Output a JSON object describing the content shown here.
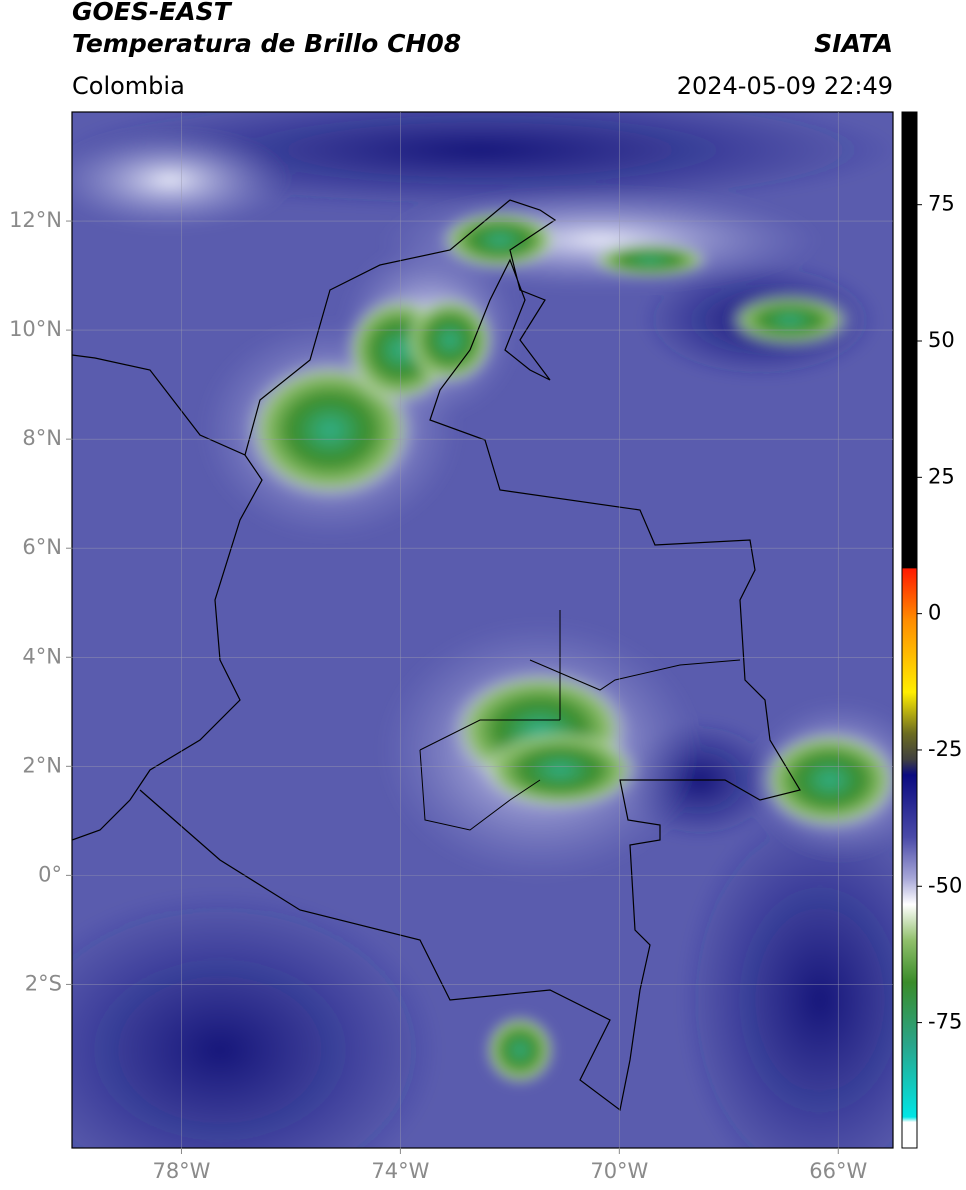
{
  "header": {
    "title": "GOES-EAST",
    "subtitle": "Temperatura de Brillo CH08",
    "source": "SIATA",
    "region": "Colombia",
    "datetime": "2024-05-09 22:49"
  },
  "map": {
    "xlim": [
      -80,
      -65
    ],
    "ylim": [
      -5,
      14
    ],
    "xticks": [
      {
        "value": -78,
        "label": "78°W"
      },
      {
        "value": -74,
        "label": "74°W"
      },
      {
        "value": -70,
        "label": "70°W"
      },
      {
        "value": -66,
        "label": "66°W"
      }
    ],
    "yticks": [
      {
        "value": 12,
        "label": "12°N"
      },
      {
        "value": 10,
        "label": "10°N"
      },
      {
        "value": 8,
        "label": "8°N"
      },
      {
        "value": 6,
        "label": "6°N"
      },
      {
        "value": 4,
        "label": "4°N"
      },
      {
        "value": 2,
        "label": "2°N"
      },
      {
        "value": 0,
        "label": "0°"
      },
      {
        "value": -2,
        "label": "2°S"
      }
    ]
  },
  "colorbar": {
    "ylim": [
      -98,
      92
    ],
    "yticks": [
      75,
      50,
      25,
      0,
      -25,
      -50,
      -75
    ]
  }
}
